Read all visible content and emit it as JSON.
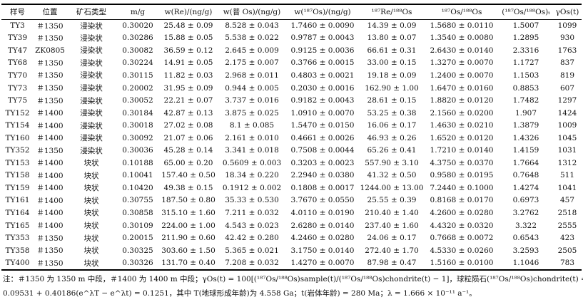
{
  "headers": {
    "sample": "样号",
    "location": "位置",
    "ore_type": "矿石类型",
    "mass": "m/g",
    "re": "w(Re)/(ng/g)",
    "os_common": "w(普 Os)/(ng/g)",
    "os187": "w(¹⁸⁷Os)/(ng/g)",
    "re_os_ratio": "¹⁸⁷Re/¹⁸⁸Os",
    "os_ratio": "¹⁸⁷Os/¹⁸⁸Os",
    "os_ratio_t": "(¹⁸⁷Os/¹⁸⁸Os)ₜ",
    "gamma": "γOs(t)"
  },
  "rows": [
    [
      "TY3",
      "＃1350",
      "浸染状",
      "0.30020",
      "25.48 ± 0.09",
      "8.528 ± 0.043",
      "1.7460 ± 0.0090",
      "14.39 ± 0.09",
      "1.5680 ± 0.0110",
      "1.5007",
      "1099"
    ],
    [
      "TY39",
      "＃1350",
      "浸染状",
      "0.30286",
      "15.88 ± 0.05",
      "5.538 ± 0.022",
      "0.9787 ± 0.0043",
      "13.80 ± 0.07",
      "1.3540 ± 0.0080",
      "1.2895",
      "930"
    ],
    [
      "TY47",
      "ZK0805",
      "浸染状",
      "0.30082",
      "36.59 ± 0.12",
      "2.645 ± 0.009",
      "0.9125 ± 0.0036",
      "66.61 ± 0.31",
      "2.6430 ± 0.0140",
      "2.3316",
      "1763"
    ],
    [
      "TY68",
      "＃1350",
      "浸染状",
      "0.30224",
      "14.91 ± 0.05",
      "2.175 ± 0.007",
      "0.3766 ± 0.0015",
      "33.00 ± 0.15",
      "1.3270 ± 0.0070",
      "1.1727",
      "837"
    ],
    [
      "TY70",
      "＃1350",
      "浸染状",
      "0.30115",
      "11.82 ± 0.03",
      "2.968 ± 0.011",
      "0.4803 ± 0.0021",
      "19.18 ± 0.09",
      "1.2400 ± 0.0070",
      "1.1503",
      "819"
    ],
    [
      "TY73",
      "＃1350",
      "浸染状",
      "0.20002",
      "31.95 ± 0.09",
      "0.944 ± 0.005",
      "0.2030 ± 0.0016",
      "162.90 ± 1.00",
      "1.6470 ± 0.0160",
      "0.8853",
      "607"
    ],
    [
      "TY75",
      "＃1350",
      "浸染状",
      "0.30052",
      "22.21 ± 0.07",
      "3.737 ± 0.016",
      "0.9182 ± 0.0043",
      "28.61 ± 0.15",
      "1.8820 ± 0.0120",
      "1.7482",
      "1297"
    ],
    [
      "TY152",
      "＃1400",
      "浸染状",
      "0.30184",
      "42.87 ± 0.13",
      "3.875 ± 0.025",
      "1.0910 ± 0.0070",
      "53.25 ± 0.38",
      "2.1560 ± 0.0200",
      "1.907",
      "1424"
    ],
    [
      "TY154",
      "＃1400",
      "浸染状",
      "0.30018",
      "27.02 ± 0.08",
      "8.1 ± 0.085",
      "1.5470 ± 0.0150",
      "16.06 ± 0.17",
      "1.4630 ± 0.0210",
      "1.3879",
      "1009"
    ],
    [
      "TY160",
      "＃1400",
      "浸染状",
      "0.30092",
      "21.07 ± 0.06",
      "2.161 ± 0.010",
      "0.4661 ± 0.0026",
      "46.93 ± 0.26",
      "1.6520 ± 0.0120",
      "1.4326",
      "1045"
    ],
    [
      "TY352",
      "＃1350",
      "浸染状",
      "0.30036",
      "45.28 ± 0.14",
      "3.341 ± 0.018",
      "0.7508 ± 0.0044",
      "65.26 ± 0.41",
      "1.7210 ± 0.0140",
      "1.4159",
      "1031"
    ],
    [
      "TY153",
      "＃1400",
      "块状",
      "0.10188",
      "65.00 ± 0.20",
      "0.5609 ± 0.003",
      "0.3203 ± 0.0023",
      "557.90 ± 3.10",
      "4.3750 ± 0.0370",
      "1.7664",
      "1312"
    ],
    [
      "TY158",
      "＃1400",
      "块状",
      "0.10041",
      "157.40 ± 0.50",
      "18.34 ± 0.220",
      "2.2940 ± 0.0380",
      "41.32 ± 0.50",
      "0.9580 ± 0.0195",
      "0.7648",
      "511"
    ],
    [
      "TY159",
      "＃1400",
      "块状",
      "0.10420",
      "49.38 ± 0.15",
      "0.1912 ± 0.002",
      "0.1808 ± 0.0017",
      "1244.00 ± 13.00",
      "7.2440 ± 0.1000",
      "1.4274",
      "1041"
    ],
    [
      "TY161",
      "＃1400",
      "块状",
      "0.30755",
      "187.50 ± 0.80",
      "35.33 ± 0.530",
      "3.7670 ± 0.0550",
      "25.55 ± 0.39",
      "0.8168 ± 0.0170",
      "0.6973",
      "457"
    ],
    [
      "TY164",
      "＃1400",
      "块状",
      "0.30858",
      "315.10 ± 1.60",
      "7.211 ± 0.032",
      "4.0110 ± 0.0190",
      "210.40 ± 1.40",
      "4.2600 ± 0.0280",
      "3.2762",
      "2518"
    ],
    [
      "TY165",
      "＃1400",
      "块状",
      "0.30109",
      "224.00 ± 1.00",
      "4.543 ± 0.023",
      "2.6280 ± 0.0140",
      "237.40 ± 1.60",
      "4.4320 ± 0.0320",
      "3.322",
      "2555"
    ],
    [
      "TY353",
      "＃1350",
      "块状",
      "0.20015",
      "211.90 ± 0.60",
      "42.42 ± 0.280",
      "4.2460 ± 0.0280",
      "24.06 ± 0.17",
      "0.7668 ± 0.0072",
      "0.6543",
      "423"
    ],
    [
      "TY358",
      "＃1350",
      "块状",
      "0.30325",
      "303.60 ± 1.50",
      "5.365 ± 0.021",
      "3.1750 ± 0.0140",
      "272.40 ± 1.70",
      "4.5330 ± 0.0260",
      "3.2593",
      "2505"
    ],
    [
      "TY400",
      "＃1350",
      "块状",
      "0.30326",
      "131.70 ± 0.40",
      "7.208 ± 0.032",
      "1.4270 ± 0.0070",
      "87.98 ± 0.47",
      "1.5160 ± 0.0100",
      "1.1046",
      "783"
    ]
  ],
  "note": {
    "line1": "注：＃1350 为 1350 m 中段，＃1400 为 1400 m 中段；γOs(t) = 100[(¹⁸⁷Os/¹⁸⁸Os)sample(t)/(¹⁸⁷Os/¹⁸⁸Os)chondrite(t) − 1]，球粒陨石(¹⁸⁷Os/¹⁸⁸Os)chondrite(t) =",
    "line2": "0.09531 + 0.40186(e^λT − e^λt) = 0.1251，其中 T(地球形成年龄)为 4.558 Ga；t(岩体年龄) = 280 Ma；λ = 1.666 × 10⁻¹¹ a⁻¹。"
  }
}
